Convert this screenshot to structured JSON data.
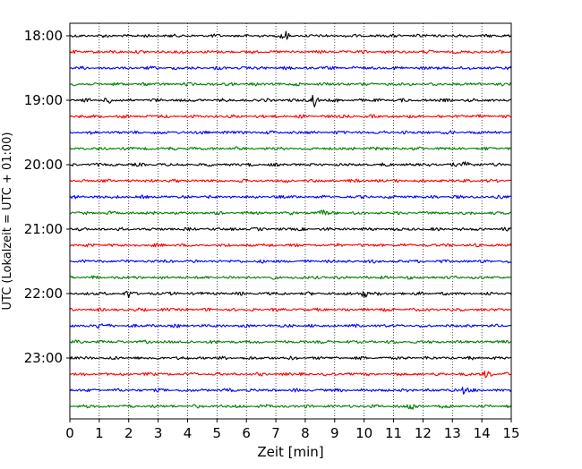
{
  "chart_data": {
    "type": "line",
    "subtype": "helicorder",
    "title": "",
    "xlabel": "Zeit  [min]",
    "ylabel": "UTC (Lokalzeit = UTC + 01:00)",
    "xlim": [
      0,
      15
    ],
    "x_ticks": [
      "0",
      "1",
      "2",
      "3",
      "4",
      "5",
      "6",
      "7",
      "8",
      "9",
      "10",
      "11",
      "12",
      "13",
      "14",
      "15"
    ],
    "y_ticks": [
      "18:00",
      "19:00",
      "20:00",
      "21:00",
      "22:00",
      "23:00"
    ],
    "y_tick_rows": [
      0,
      4,
      8,
      12,
      16,
      20
    ],
    "row_interval_min": 15,
    "rows": 24,
    "grid": {
      "x": true,
      "y": false,
      "style": "dotted"
    },
    "trace_colors": [
      "#000000",
      "#ff0000",
      "#0000ff",
      "#008000"
    ],
    "events": [
      {
        "row": 0,
        "x": 7.3,
        "amp": 0.9
      },
      {
        "row": 4,
        "x": 8.3,
        "amp": 1.4
      },
      {
        "row": 4,
        "x": 1.3,
        "amp": 0.6
      },
      {
        "row": 8,
        "x": 13.5,
        "amp": 1.2
      },
      {
        "row": 11,
        "x": 8.6,
        "amp": 0.5
      },
      {
        "row": 16,
        "x": 10.0,
        "amp": 0.9
      },
      {
        "row": 16,
        "x": 2.0,
        "amp": 0.7
      },
      {
        "row": 18,
        "x": 1.0,
        "amp": 0.6
      },
      {
        "row": 21,
        "x": 14.2,
        "amp": 0.9
      },
      {
        "row": 22,
        "x": 13.4,
        "amp": 0.8
      },
      {
        "row": 23,
        "x": 11.6,
        "amp": 0.8
      }
    ]
  }
}
